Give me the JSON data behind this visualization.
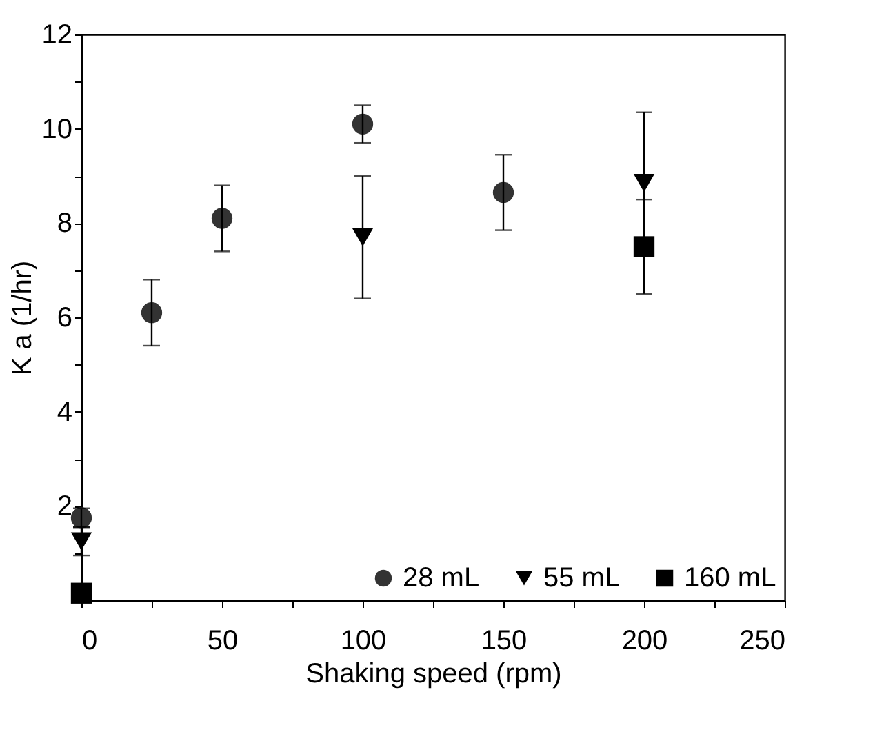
{
  "chart_data": {
    "type": "scatter",
    "xlabel": "Shaking speed (rpm)",
    "ylabel": "K a (1/hr)",
    "xlim": [
      0,
      250
    ],
    "ylim": [
      0,
      12
    ],
    "xticks": [
      0,
      {
        "value": 25,
        "label": null
      },
      50,
      {
        "value": 75,
        "label": null
      },
      100,
      {
        "value": 125,
        "label": null
      },
      150,
      {
        "value": 175,
        "label": null
      },
      200,
      {
        "value": 225,
        "label": null
      },
      250
    ],
    "yticks": [
      {
        "value": 1,
        "label": null
      },
      2,
      {
        "value": 3,
        "label": null
      },
      4,
      {
        "value": 5,
        "label": null
      },
      6,
      {
        "value": 7,
        "label": null
      },
      8,
      {
        "value": 9,
        "label": null
      },
      10,
      {
        "value": 11,
        "label": null
      },
      12
    ],
    "grid": false,
    "legend": "bottom right",
    "series": [
      {
        "name": "28 mL",
        "color": "#333333",
        "marker": "circle",
        "x": [
          0,
          25,
          50,
          100,
          150
        ],
        "values": [
          1.75,
          6.1,
          8.1,
          10.1,
          8.65
        ],
        "errors": [
          0.2,
          0.7,
          0.7,
          0.4,
          0.8
        ]
      },
      {
        "name": "55 mL",
        "color": "#000000",
        "marker": "triangle",
        "x": [
          0,
          100,
          200
        ],
        "values": [
          1.25,
          7.7,
          8.85
        ],
        "errors": [
          0.3,
          1.3,
          1.5
        ]
      },
      {
        "name": "160 mL",
        "color": "#000000",
        "marker": "square",
        "x": [
          0,
          200
        ],
        "values": [
          0.15,
          7.5
        ],
        "errors": [
          0.1,
          1.0
        ]
      }
    ]
  }
}
